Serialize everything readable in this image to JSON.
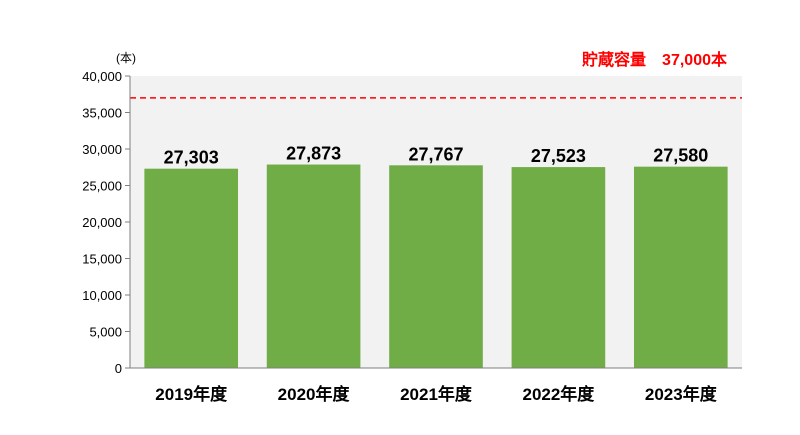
{
  "chart_data": {
    "type": "bar",
    "title": "",
    "xlabel": "",
    "ylabel": "",
    "y_unit": "(本)",
    "categories": [
      "2019年度",
      "2020年度",
      "2021年度",
      "2022年度",
      "2023年度"
    ],
    "values": [
      27303,
      27873,
      27767,
      27523,
      27580
    ],
    "data_labels": [
      "27,303",
      "27,873",
      "27,767",
      "27,523",
      "27,580"
    ],
    "ylim": [
      0,
      40000
    ],
    "yticks": [
      0,
      5000,
      10000,
      15000,
      20000,
      25000,
      30000,
      35000,
      40000
    ],
    "ytick_labels": [
      "0",
      "5,000",
      "10,000",
      "15,000",
      "20,000",
      "25,000",
      "30,000",
      "35,000",
      "40,000"
    ],
    "reference_line": {
      "value": 37000,
      "label": "貯蔵容量　37,000本",
      "style": "dashed",
      "color": "#ff0000"
    },
    "grid": false,
    "legend": "none",
    "colors": {
      "bar": "#70ad47",
      "plot_background": "#f2f2f2",
      "axis": "#7f7f7f"
    }
  }
}
